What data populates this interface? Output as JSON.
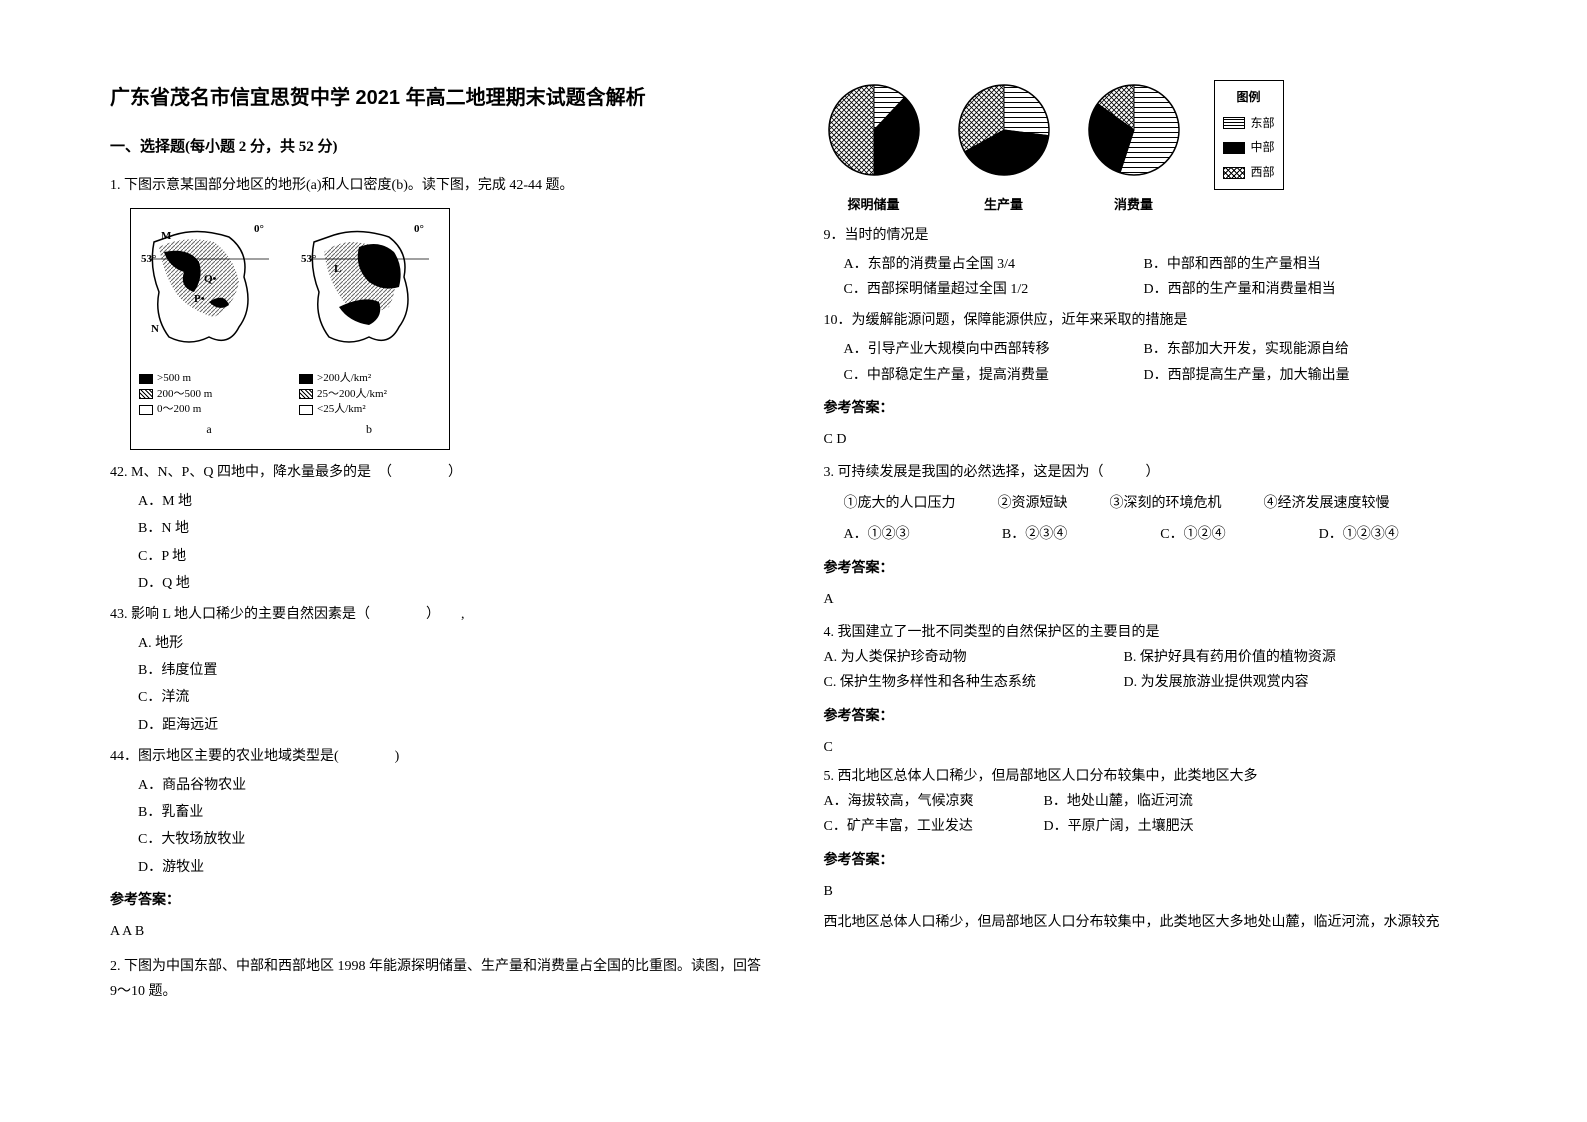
{
  "title": "广东省茂名市信宜思贺中学 2021 年高二地理期末试题含解析",
  "section1_header": "一、选择题(每小题 2 分，共 52 分)",
  "q1": {
    "intro": "1. 下图示意某国部分地区的地形(a)和人口密度(b)。读下图，完成 42-44 题。",
    "map_a": {
      "points": [
        "M",
        "N",
        "P",
        "Q"
      ],
      "lat_labels": [
        "0°",
        "53°"
      ],
      "legend": [
        ">500 m",
        "200～500 m",
        "0～200 m"
      ],
      "panel_label": "a"
    },
    "map_b": {
      "point": "L",
      "lat_labels": [
        "0°",
        "53°"
      ],
      "legend": [
        ">200人/km²",
        "25～200人/km²",
        "<25人/km²"
      ],
      "panel_label": "b"
    },
    "q42": {
      "stem": "42. M、N、P、Q 四地中，降水量最多的是　（　　　　）",
      "opts": [
        "A．M 地",
        "B．N 地",
        "C．P 地",
        "D．Q 地"
      ]
    },
    "q43": {
      "stem": "43. 影响 L 地人口稀少的主要自然因素是（　　　　）　　,",
      "opts": [
        "A. 地形",
        "B．纬度位置",
        "C．洋流",
        "D．距海远近"
      ]
    },
    "q44": {
      "stem": "44．图示地区主要的农业地域类型是(　　　　)",
      "opts": [
        "A．商品谷物农业",
        "B．乳畜业",
        "C．大牧场放牧业",
        "D．游牧业"
      ]
    },
    "answer_header": "参考答案：",
    "answer": "A  A  B"
  },
  "q2": {
    "intro": "2. 下图为中国东部、中部和西部地区 1998 年能源探明储量、生产量和消费量占全国的比重图。读图，回答 9～10 题。",
    "pies": [
      {
        "label": "探明储量",
        "east": 0.12,
        "mid": 0.38,
        "west": 0.5
      },
      {
        "label": "生产量",
        "east": 0.27,
        "mid": 0.4,
        "west": 0.33
      },
      {
        "label": "消费量",
        "east": 0.55,
        "mid": 0.3,
        "west": 0.15
      }
    ],
    "legend_title": "图例",
    "legend": [
      "东部",
      "中部",
      "西部"
    ],
    "q9": {
      "stem": "9．当时的情况是",
      "opts": [
        "A．东部的消费量占全国 3/4",
        "B．中部和西部的生产量相当",
        "C．西部探明储量超过全国 1/2",
        "D．西部的生产量和消费量相当"
      ]
    },
    "q10": {
      "stem": "10．为缓解能源问题，保障能源供应，近年来采取的措施是",
      "opts": [
        "A．引导产业大规模向中西部转移",
        "B．东部加大开发，实现能源自给",
        "C．中部稳定生产量，提高消费量",
        "D．西部提高生产量，加大输出量"
      ]
    },
    "answer_header": "参考答案：",
    "answer": "C  D"
  },
  "q3": {
    "stem": "3. 可持续发展是我国的必然选择，这是因为（　　　）",
    "items": "①庞大的人口压力　　　②资源短缺　　　③深刻的环境危机　　　④经济发展速度较慢",
    "opts": [
      "A．①②③",
      "B．②③④",
      "C．①②④",
      "D．①②③④"
    ],
    "answer_header": "参考答案：",
    "answer": "A"
  },
  "q4": {
    "stem": "4. 我国建立了一批不同类型的自然保护区的主要目的是",
    "opts": [
      "A. 为人类保护珍奇动物",
      "B. 保护好具有药用价值的植物资源",
      "C. 保护生物多样性和各种生态系统",
      "D. 为发展旅游业提供观赏内容"
    ],
    "answer_header": "参考答案：",
    "answer": "C"
  },
  "q5": {
    "stem": "5. 西北地区总体人口稀少，但局部地区人口分布较集中，此类地区大多",
    "opts": [
      "A．海拔较高，气候凉爽",
      "B．地处山麓，临近河流",
      "C．矿产丰富，工业发达",
      "D．平原广阔，土壤肥沃"
    ],
    "answer_header": "参考答案：",
    "answer": "B",
    "explain": "西北地区总体人口稀少，但局部地区人口分布较集中，此类地区大多地处山麓，临近河流，水源较充"
  },
  "colors": {
    "text": "#000000",
    "bg": "#ffffff"
  }
}
